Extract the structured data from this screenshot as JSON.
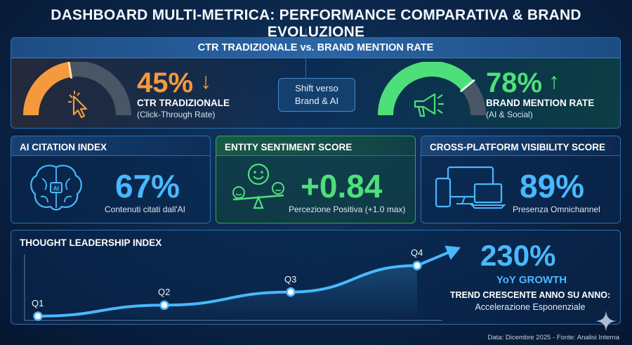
{
  "title": "DASHBOARD MULTI-METRICA: PERFORMANCE COMPARATIVA & BRAND EVOLUZIONE",
  "colors": {
    "orange": "#f59a3c",
    "green": "#4de07a",
    "blue": "#49b8ff",
    "panel_border": "#2f6fae"
  },
  "ctr_section": {
    "header": "CTR TRADIZIONALE vs. BRAND MENTION RATE",
    "ctr": {
      "value": "45%",
      "fraction": 0.45,
      "arrow": "↓",
      "label": "CTR TRADIZIONALE",
      "sub": "(Click-Through Rate)",
      "icon": "cursor-click-icon"
    },
    "shift": {
      "line1": "Shift verso",
      "line2": "Brand & AI"
    },
    "brand": {
      "value": "78%",
      "fraction": 0.78,
      "arrow": "↑",
      "label": "BRAND MENTION RATE",
      "sub": "(AI & Social)",
      "icon": "megaphone-icon"
    }
  },
  "ai_citation": {
    "header": "AI CITATION INDEX",
    "value": "67%",
    "caption": "Contenuti citati dall'AI",
    "icon": "brain-icon"
  },
  "sentiment": {
    "header": "ENTITY SENTIMENT SCORE",
    "value": "+0.84",
    "caption": "Percezione Positiva (+1.0 max)",
    "icon": "sentiment-scale-icon"
  },
  "cross_platform": {
    "header": "CROSS-PLATFORM VISIBILITY SCORE",
    "value": "89%",
    "caption": "Presenza Omnichannel",
    "icon": "devices-icon"
  },
  "thought_leadership": {
    "header": "THOUGHT LEADERSHIP INDEX",
    "growth_value": "230%",
    "growth_label": "YoY GROWTH",
    "trend_title": "TREND CRESCENTE ANNO SU ANNO:",
    "trend_sub": "Accelerazione Esponenziale"
  },
  "chart_data": {
    "type": "line",
    "categories": [
      "Q1",
      "Q2",
      "Q3",
      "Q4"
    ],
    "values": [
      1.0,
      1.5,
      2.1,
      3.3
    ],
    "title": "THOUGHT LEADERSHIP INDEX",
    "xlabel": "",
    "ylabel": "",
    "grid": false
  },
  "footer": "Data: Dicembre 2025 - Fonte: Analisi Interna"
}
